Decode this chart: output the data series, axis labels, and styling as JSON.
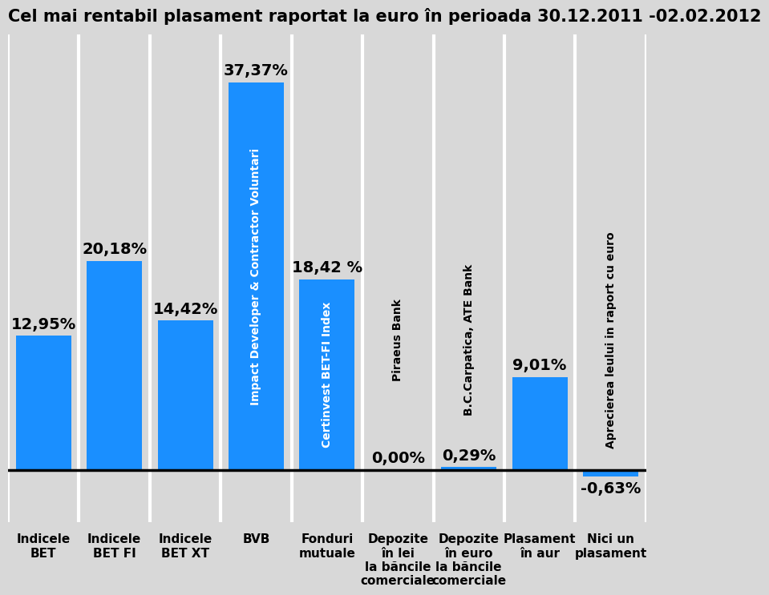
{
  "title": "Cel mai rentabil plasament raportat la euro în perioada 30.12.2011 -02.02.2012",
  "values": [
    12.95,
    20.18,
    14.42,
    37.37,
    18.42,
    0.0,
    0.29,
    9.01,
    -0.63
  ],
  "bar_labels": [
    "12,95%",
    "20,18%",
    "14,42%",
    "37,37%",
    "18,42 %",
    "0,00%",
    "0,29%",
    "9,01%",
    "-0,63%"
  ],
  "bar_color": "#1a8fff",
  "background_color": "#d8d8d8",
  "title_fontsize": 15,
  "bar_label_fontsize": 14,
  "xlabel_fontsize": 11,
  "bar_inside_texts": [
    null,
    null,
    null,
    "Impact Developer & Contractor Voluntari",
    "Certinvest BET-FI Index",
    null,
    null,
    null,
    null
  ],
  "bar_outside_texts": [
    null,
    null,
    null,
    null,
    null,
    "Piraeus Bank",
    "B.C.Carpatica, ATE Bank",
    null,
    "Aprecierea leului in raport cu euro"
  ],
  "xlabels": [
    "Indicele\nBET",
    "Indicele\nBET FI",
    "Indicele\nBET XT",
    "BVB",
    "Fonduri\nmutuale",
    "Depozite\nîn lei\nla băncile\ncomerciale",
    "Depozite\nîn euro\nla băncile\ncomerciale",
    "Plasament\nîn aur",
    "Nici un\nplasament"
  ],
  "ylim": [
    -5,
    42
  ],
  "bar_width": 0.78
}
